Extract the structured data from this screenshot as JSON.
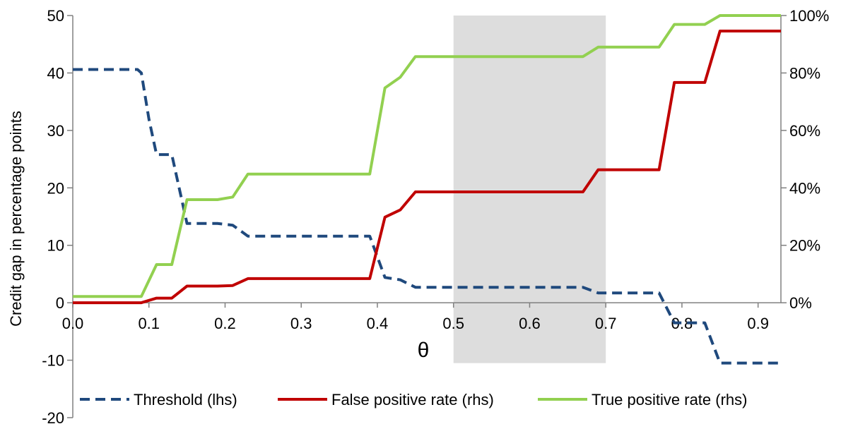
{
  "chart_data": {
    "type": "line",
    "title": "",
    "xlabel": "θ",
    "ylabel": "Credit gap in percentage points",
    "xlim": [
      0.0,
      0.93
    ],
    "ylim": [
      -20,
      50
    ],
    "y2lim": [
      0,
      100
    ],
    "x_ticks": [
      0.0,
      0.1,
      0.2,
      0.3,
      0.4,
      0.5,
      0.6,
      0.7,
      0.8,
      0.9
    ],
    "x_tick_labels": [
      "0.0",
      "0.1",
      "0.2",
      "0.3",
      "0.4",
      "0.5",
      "0.6",
      "0.7",
      "0.8",
      "0.9"
    ],
    "y_ticks": [
      -20,
      -10,
      0,
      10,
      20,
      30,
      40,
      50
    ],
    "y_tick_labels": [
      "-20",
      "-10",
      "0",
      "10",
      "20",
      "30",
      "40",
      "50"
    ],
    "y2_ticks": [
      0,
      20,
      40,
      60,
      80,
      100
    ],
    "y2_tick_labels": [
      "0%",
      "20%",
      "40%",
      "60%",
      "80%",
      "100%"
    ],
    "shaded_region": {
      "x_from": 0.5,
      "x_to": 0.7,
      "y_from": -10.5,
      "y_to": 50,
      "color": "#dddddd"
    },
    "legend_position": "bottom",
    "series": [
      {
        "name": "Threshold (lhs)",
        "axis": "left",
        "color": "#1f497d",
        "dash": true,
        "x": [
          0.0,
          0.085,
          0.09,
          0.1,
          0.11,
          0.13,
          0.15,
          0.19,
          0.21,
          0.23,
          0.39,
          0.41,
          0.43,
          0.45,
          0.67,
          0.69,
          0.77,
          0.79,
          0.83,
          0.85,
          0.93
        ],
        "values": [
          40.6,
          40.6,
          40.0,
          32.0,
          25.8,
          25.8,
          13.8,
          13.8,
          13.5,
          11.6,
          11.6,
          4.4,
          4.0,
          2.7,
          2.7,
          1.7,
          1.7,
          -3.5,
          -3.5,
          -10.5,
          -10.5
        ]
      },
      {
        "name": "False positive rate (rhs)",
        "axis": "right",
        "color": "#c00000",
        "dash": false,
        "x": [
          0.0,
          0.09,
          0.11,
          0.13,
          0.15,
          0.19,
          0.21,
          0.23,
          0.39,
          0.41,
          0.43,
          0.45,
          0.67,
          0.69,
          0.77,
          0.79,
          0.83,
          0.85,
          0.93
        ],
        "values": [
          0,
          0,
          1.6,
          1.6,
          5.8,
          5.8,
          6.0,
          8.4,
          8.4,
          29.8,
          32.3,
          38.6,
          38.6,
          46.3,
          46.3,
          76.7,
          76.7,
          94.6,
          94.6
        ]
      },
      {
        "name": "True positive rate (rhs)",
        "axis": "right",
        "color": "#92d050",
        "dash": false,
        "x": [
          0.0,
          0.09,
          0.11,
          0.13,
          0.15,
          0.19,
          0.21,
          0.23,
          0.39,
          0.41,
          0.43,
          0.45,
          0.67,
          0.69,
          0.77,
          0.79,
          0.83,
          0.85,
          0.93
        ],
        "values": [
          2.2,
          2.2,
          13.3,
          13.3,
          35.9,
          35.9,
          36.8,
          44.8,
          44.8,
          74.8,
          78.5,
          85.7,
          85.7,
          89.0,
          89.0,
          96.9,
          96.9,
          100,
          100
        ]
      }
    ]
  }
}
